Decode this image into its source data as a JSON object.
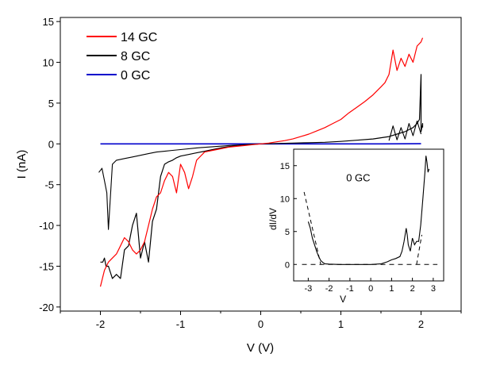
{
  "chart_data": {
    "type": "line",
    "xlabel": "V (V)",
    "ylabel": "I (nA)",
    "xlim": [
      -2.5,
      2.5
    ],
    "ylim": [
      -20.5,
      15.5
    ],
    "x_ticks": [
      "-2",
      "-1",
      "0",
      "1",
      "2"
    ],
    "y_ticks": [
      "-20",
      "-15",
      "-10",
      "-5",
      "0",
      "5",
      "10",
      "15"
    ],
    "x_tick_values": [
      -2,
      -1,
      0,
      1,
      2
    ],
    "y_tick_values": [
      -20,
      -15,
      -10,
      -5,
      0,
      5,
      10,
      15
    ],
    "grid": false,
    "legend_position": "top-left",
    "series": [
      {
        "name": "14 GC",
        "color": "#ff0000",
        "x": [
          -2.0,
          -1.95,
          -1.9,
          -1.85,
          -1.8,
          -1.75,
          -1.7,
          -1.65,
          -1.6,
          -1.55,
          -1.5,
          -1.45,
          -1.4,
          -1.35,
          -1.3,
          -1.25,
          -1.2,
          -1.15,
          -1.1,
          -1.05,
          -1.0,
          -0.95,
          -0.9,
          -0.85,
          -0.8,
          -0.7,
          -0.6,
          -0.5,
          -0.4,
          -0.3,
          -0.2,
          -0.1,
          0.0,
          0.1,
          0.2,
          0.3,
          0.4,
          0.5,
          0.6,
          0.7,
          0.8,
          0.9,
          1.0,
          1.1,
          1.2,
          1.3,
          1.4,
          1.5,
          1.55,
          1.6,
          1.65,
          1.7,
          1.75,
          1.8,
          1.85,
          1.9,
          1.95,
          2.0,
          2.02
        ],
        "y": [
          -17.5,
          -15.5,
          -14.5,
          -14.0,
          -13.5,
          -12.5,
          -11.5,
          -12.0,
          -13.0,
          -13.5,
          -13.0,
          -12.0,
          -10.0,
          -8.0,
          -6.5,
          -6.0,
          -4.5,
          -3.5,
          -4.0,
          -6.0,
          -2.5,
          -3.5,
          -5.5,
          -4.0,
          -2.0,
          -1.0,
          -0.8,
          -0.6,
          -0.4,
          -0.3,
          -0.2,
          -0.1,
          0.0,
          0.1,
          0.25,
          0.4,
          0.6,
          0.9,
          1.2,
          1.6,
          2.0,
          2.5,
          3.0,
          3.8,
          4.5,
          5.2,
          6.0,
          7.0,
          7.5,
          8.5,
          11.5,
          9.0,
          10.5,
          9.5,
          11.0,
          10.0,
          12.0,
          12.5,
          13.0
        ]
      },
      {
        "name": "8 GC",
        "color": "#000000",
        "x": [
          -2.0,
          -1.97,
          -1.95,
          -1.93,
          -1.9,
          -1.85,
          -1.8,
          -1.75,
          -1.7,
          -1.65,
          -1.6,
          -1.55,
          -1.5,
          -1.45,
          -1.4,
          -1.35,
          -1.3,
          -1.25,
          -1.2,
          -1.15,
          -1.1,
          -1.05,
          -1.0,
          -0.9,
          -0.8,
          -0.7,
          -0.6,
          -0.5,
          -0.4,
          -0.3,
          -0.2,
          -0.1,
          0.0,
          0.2,
          0.4,
          0.6,
          0.8,
          1.0,
          1.2,
          1.4,
          1.6,
          1.7,
          1.8,
          1.9,
          1.95,
          1.98,
          2.0,
          2.0,
          2.02,
          2.02
        ],
        "y": [
          -14.5,
          -14.5,
          -14.0,
          -15.0,
          -15.0,
          -16.5,
          -16.0,
          -16.5,
          -13.0,
          -12.5,
          -10.0,
          -8.5,
          -14.0,
          -12.0,
          -14.5,
          -9.5,
          -8.0,
          -4.0,
          -2.5,
          -2.2,
          -2.0,
          -1.7,
          -1.5,
          -1.3,
          -1.1,
          -0.9,
          -0.7,
          -0.5,
          -0.35,
          -0.2,
          -0.1,
          -0.05,
          0.0,
          0.05,
          0.1,
          0.15,
          0.2,
          0.3,
          0.45,
          0.6,
          0.9,
          1.2,
          1.5,
          2.0,
          2.5,
          3.0,
          8.5,
          1.5,
          2.5,
          2.0
        ]
      },
      {
        "name": "0 GC",
        "color": "#0000cc",
        "x": [
          -2.0,
          -1.5,
          -1.0,
          -0.5,
          0.0,
          0.5,
          1.0,
          1.5,
          2.0
        ],
        "y": [
          0.0,
          0.0,
          0.0,
          0.0,
          0.0,
          0.0,
          0.0,
          0.0,
          0.02
        ]
      }
    ],
    "extra_traces": [
      {
        "series_index": 1,
        "color": "#000000",
        "x": [
          -2.02,
          -1.98,
          -1.95,
          -1.92,
          -1.9,
          -1.85,
          -1.8,
          -1.7,
          -1.6,
          -1.5,
          -1.4,
          -1.3,
          -1.2,
          -1.1,
          -1.0,
          -0.8,
          -0.6,
          -0.4,
          -0.2,
          0.0
        ],
        "y": [
          -3.5,
          -3.0,
          -4.5,
          -6.0,
          -10.5,
          -2.5,
          -2.0,
          -1.8,
          -1.6,
          -1.4,
          -1.2,
          -1.0,
          -0.9,
          -0.8,
          -0.7,
          -0.5,
          -0.35,
          -0.2,
          -0.1,
          0.0
        ]
      },
      {
        "series_index": 1,
        "color": "#000000",
        "x": [
          1.6,
          1.65,
          1.7,
          1.75,
          1.8,
          1.85,
          1.9,
          1.95,
          2.0
        ],
        "y": [
          0.4,
          2.2,
          0.5,
          2.0,
          0.6,
          2.5,
          1.0,
          2.8,
          1.2
        ]
      }
    ],
    "inset": {
      "annotation": "0 GC",
      "xlabel": "V",
      "ylabel": "dI/dV",
      "xlim": [
        -3.7,
        3.5
      ],
      "ylim": [
        -2.5,
        17.5
      ],
      "x_ticks": [
        "-3",
        "-2",
        "-1",
        "0",
        "1",
        "2",
        "3"
      ],
      "y_ticks": [
        "0",
        "5",
        "10",
        "15"
      ],
      "x_tick_values": [
        -3,
        -2,
        -1,
        0,
        1,
        2,
        3
      ],
      "y_tick_values": [
        0,
        5,
        10,
        15
      ],
      "x": [
        -3.0,
        -2.9,
        -2.8,
        -2.7,
        -2.6,
        -2.5,
        -2.4,
        -2.3,
        -2.2,
        -2.0,
        -1.5,
        -1.0,
        -0.5,
        0.0,
        0.5,
        0.8,
        1.0,
        1.2,
        1.4,
        1.5,
        1.6,
        1.7,
        1.75,
        1.8,
        1.9,
        2.0,
        2.1,
        2.2,
        2.3,
        2.4,
        2.5,
        2.6,
        2.65,
        2.7,
        2.75,
        2.8
      ],
      "y": [
        6.5,
        5.5,
        4.0,
        3.0,
        2.0,
        1.2,
        0.6,
        0.3,
        0.1,
        0.05,
        0.0,
        0.0,
        0.0,
        0.0,
        0.1,
        0.4,
        0.7,
        0.9,
        1.2,
        2.0,
        3.5,
        5.5,
        4.5,
        3.0,
        2.0,
        4.0,
        3.0,
        3.5,
        3.5,
        6.0,
        10.0,
        14.0,
        16.5,
        15.5,
        14.0,
        14.5
      ],
      "baseline_y": 0,
      "dashed_lines": [
        {
          "x": [
            -3.2,
            -2.4
          ],
          "y": [
            11.0,
            0.0
          ]
        },
        {
          "x": [
            2.2,
            2.45
          ],
          "y": [
            0.0,
            4.5
          ]
        }
      ]
    }
  }
}
